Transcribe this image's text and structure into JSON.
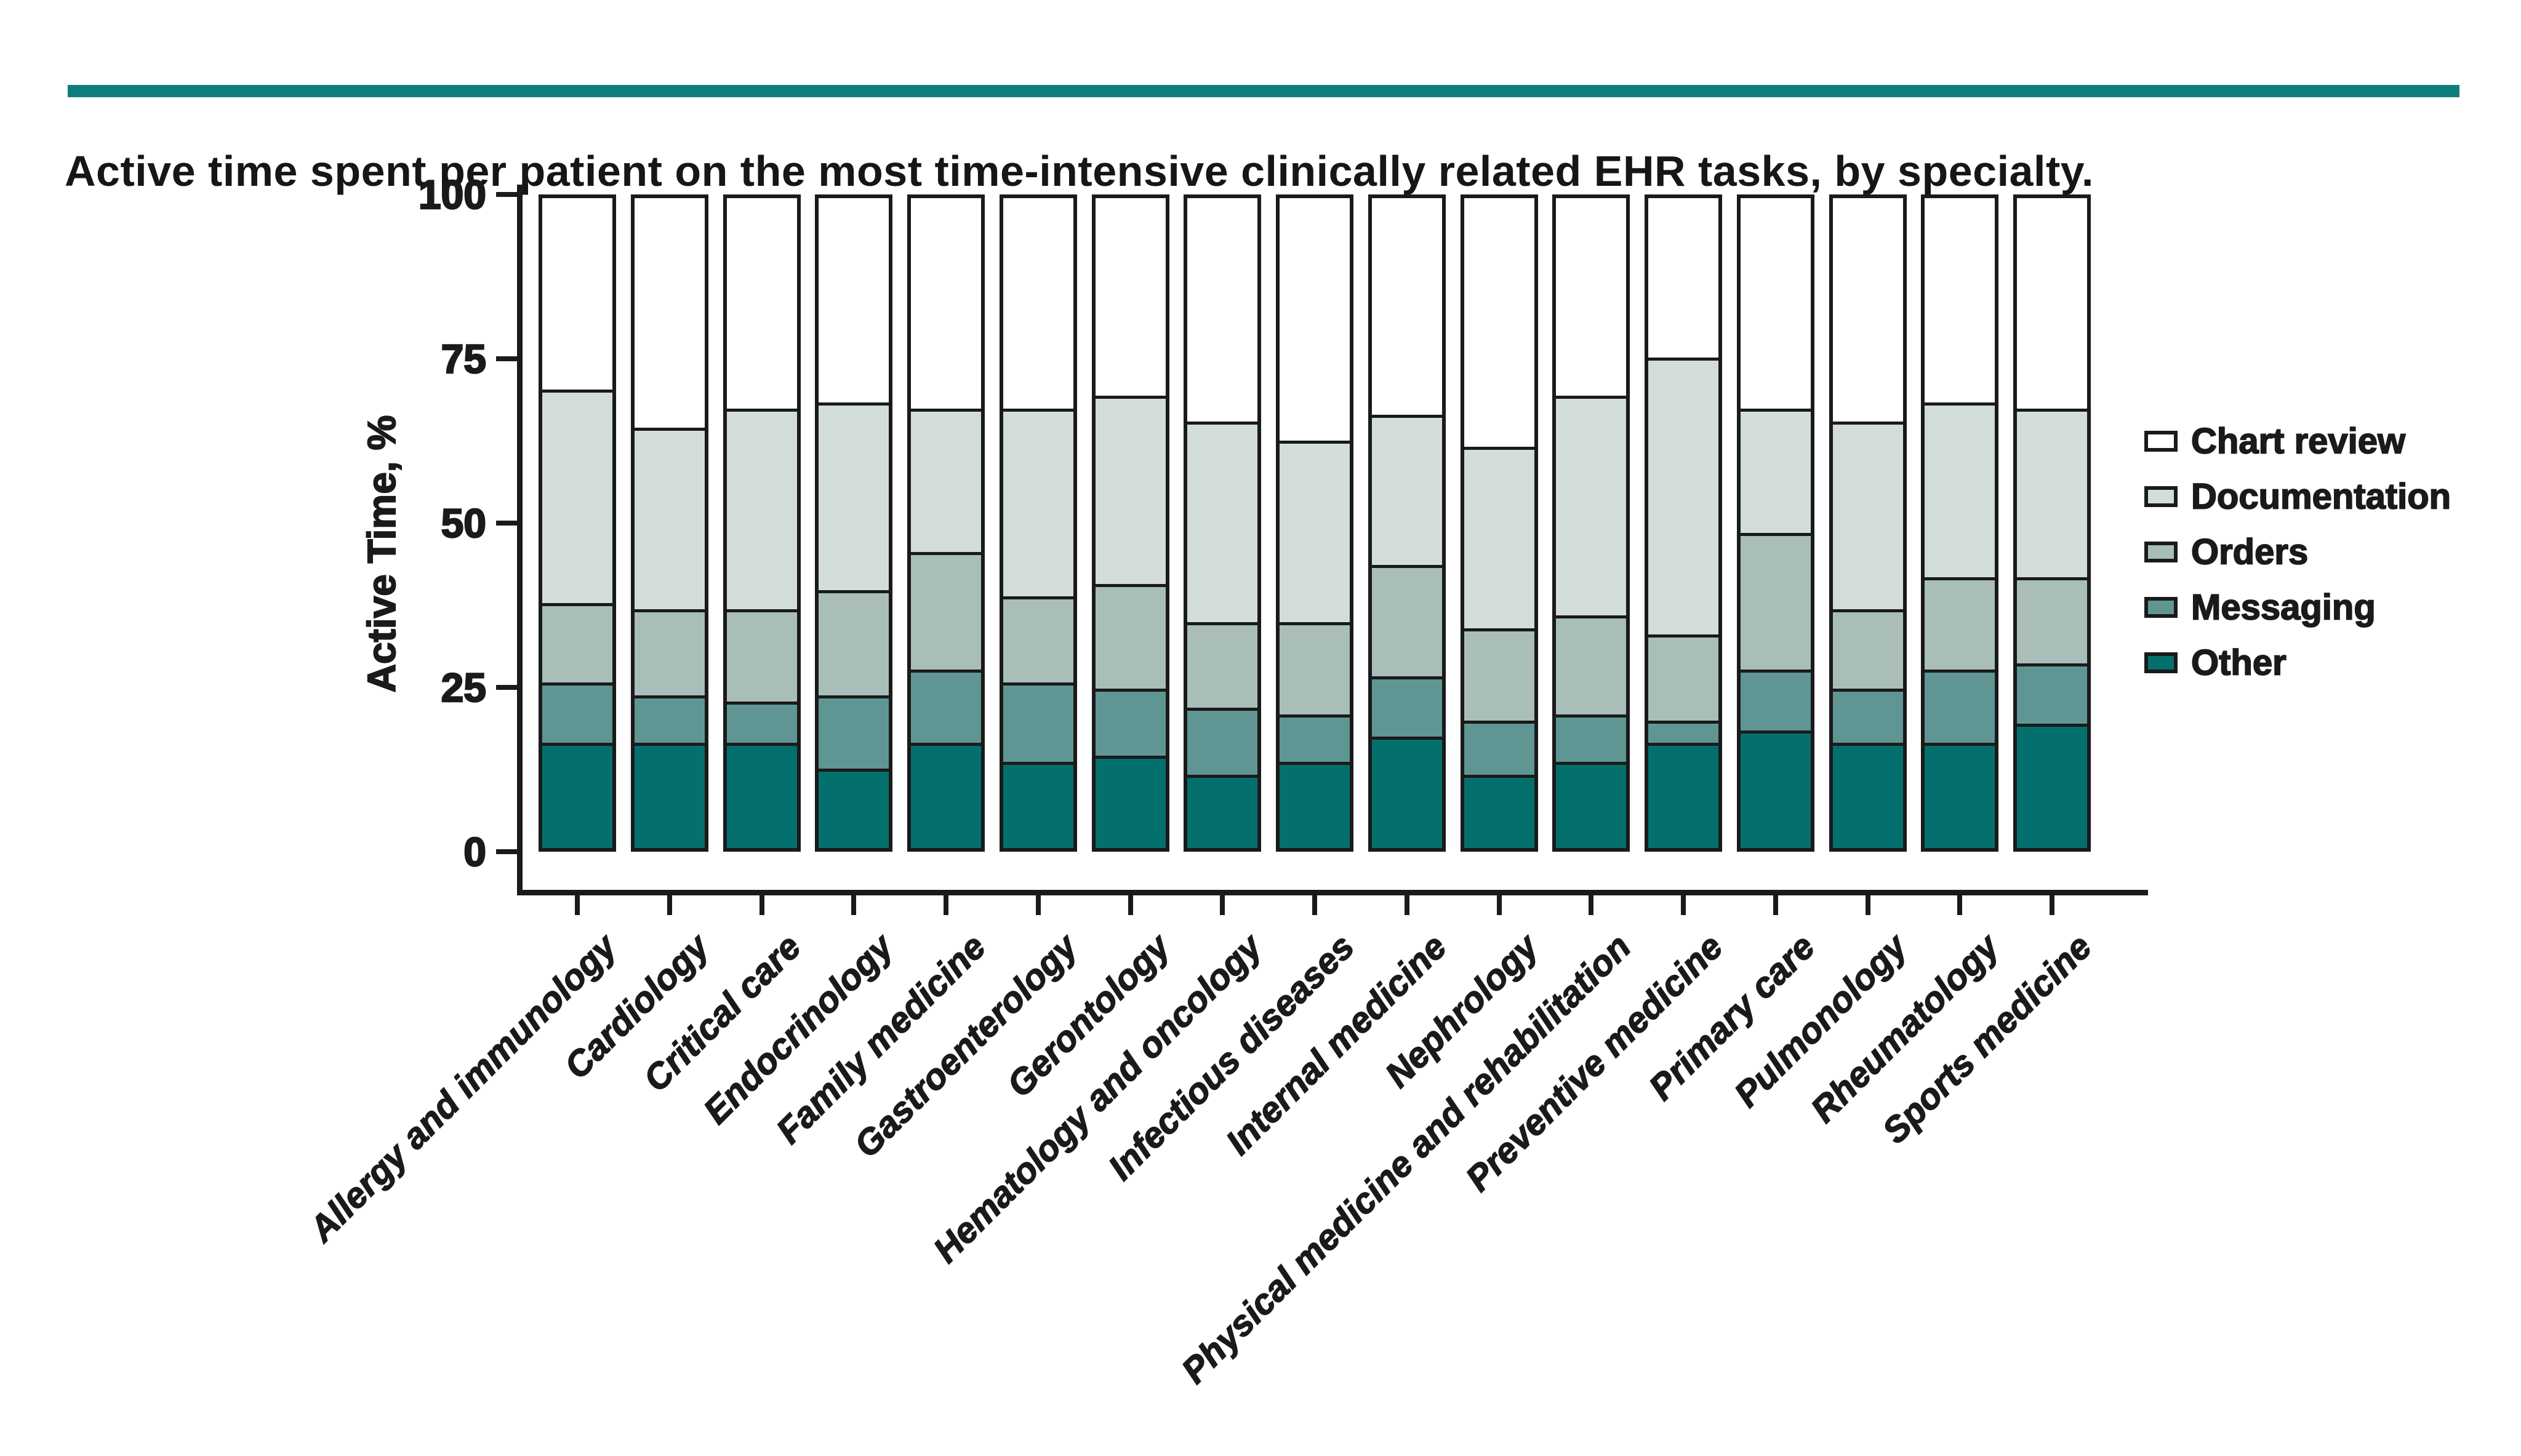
{
  "header": {
    "title": "Active time spent per patient on the most time-intensive clinically related EHR tasks, by specialty."
  },
  "colors": {
    "accent_rule": "#0f7d7b",
    "ink": "#1a1a1a",
    "chart_review": "#ffffff",
    "documentation": "#d2ddd8",
    "orders": "#a9beb9",
    "messaging": "#5f9693",
    "other": "#04706e"
  },
  "chart_data": {
    "type": "bar",
    "variant": "stacked-vertical",
    "title": "Active time spent per patient on the most time-intensive clinically related EHR tasks, by specialty.",
    "xlabel": "",
    "ylabel": "Active Time, %",
    "ylim": [
      0,
      100
    ],
    "y_ticks": [
      0,
      25,
      50,
      75,
      100
    ],
    "grid": "off",
    "legend_position": "right",
    "stack_order_bottom_to_top": [
      "Other",
      "Messaging",
      "Orders",
      "Documentation",
      "Chart review"
    ],
    "categories": [
      "Allergy and immunology",
      "Cardiology",
      "Critical care",
      "Endocrinology",
      "Family medicine",
      "Gastroenterology",
      "Gerontology",
      "Hematology and oncology",
      "Infectious diseases",
      "Internal medicine",
      "Nephrology",
      "Physical medicine and rehabilitation",
      "Preventive medicine",
      "Primary care",
      "Pulmonology",
      "Rheumatology",
      "Sports medicine"
    ],
    "series": [
      {
        "name": "Chart review",
        "color": "#ffffff",
        "values": [
          30,
          36,
          33,
          32,
          33,
          33,
          31,
          35,
          38,
          34,
          39,
          31,
          25,
          33,
          35,
          32,
          33
        ]
      },
      {
        "name": "Documentation",
        "color": "#d2ddd8",
        "values": [
          33,
          28,
          31,
          29,
          22,
          29,
          29,
          31,
          28,
          23,
          28,
          34,
          43,
          19,
          29,
          27,
          26
        ]
      },
      {
        "name": "Orders",
        "color": "#a9beb9",
        "values": [
          12,
          13,
          14,
          16,
          18,
          13,
          16,
          13,
          14,
          17,
          14,
          15,
          13,
          21,
          12,
          14,
          13
        ]
      },
      {
        "name": "Messaging",
        "color": "#5f9693",
        "values": [
          9,
          7,
          6,
          11,
          11,
          12,
          10,
          10,
          7,
          9,
          8,
          7,
          3,
          9,
          8,
          11,
          9
        ]
      },
      {
        "name": "Other",
        "color": "#04706e",
        "values": [
          16,
          16,
          16,
          12,
          16,
          13,
          14,
          11,
          13,
          17,
          11,
          13,
          16,
          18,
          16,
          16,
          19
        ]
      }
    ]
  }
}
